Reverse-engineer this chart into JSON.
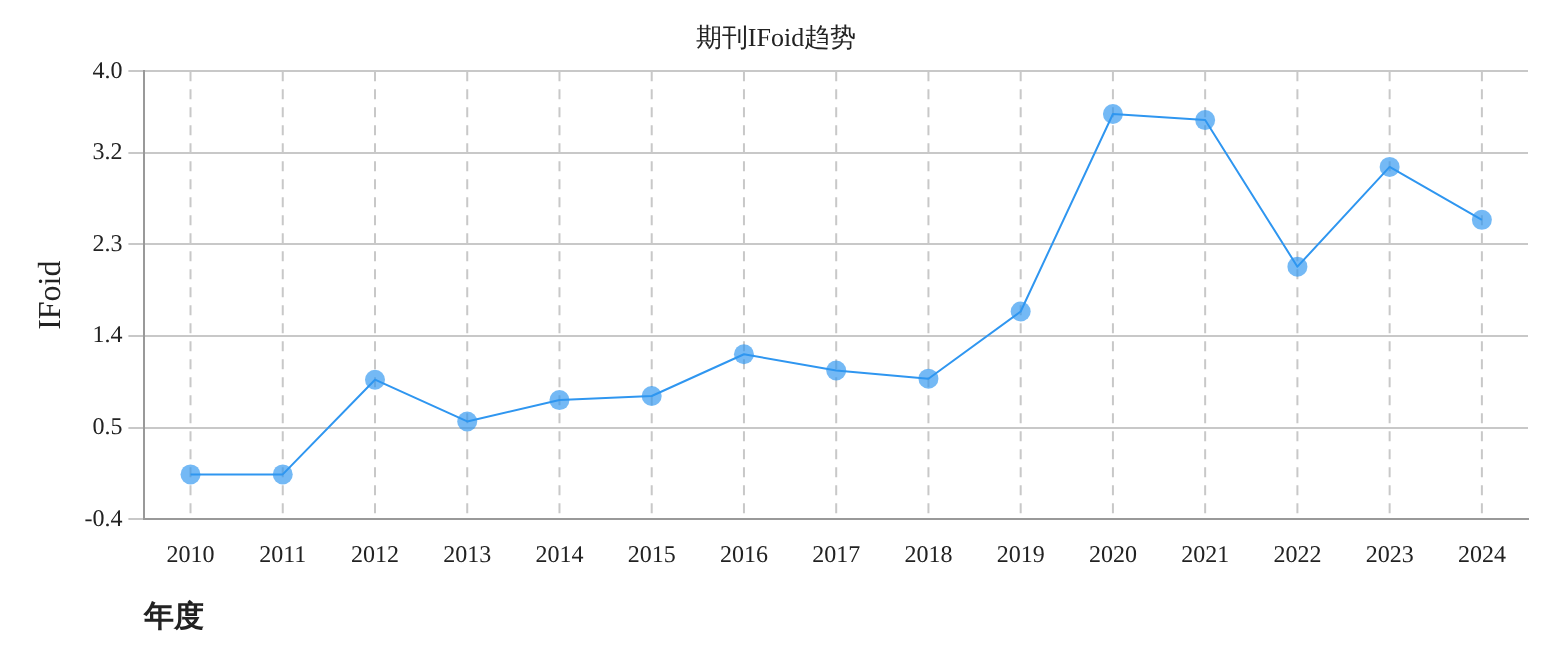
{
  "chart_data": {
    "type": "line",
    "title": "期刊IFoid趋势",
    "xlabel": "年度",
    "ylabel": "IFoid",
    "categories": [
      "2010",
      "2011",
      "2012",
      "2013",
      "2014",
      "2015",
      "2016",
      "2017",
      "2018",
      "2019",
      "2020",
      "2021",
      "2022",
      "2023",
      "2024"
    ],
    "series": [
      {
        "color": "#2f96f0",
        "values": [
          0.04,
          0.04,
          0.97,
          0.56,
          0.77,
          0.81,
          1.22,
          1.06,
          0.98,
          1.64,
          3.58,
          3.52,
          2.08,
          3.06,
          2.54
        ]
      }
    ],
    "ylim": [
      -0.4,
      4.0
    ],
    "yticks": [
      -0.4,
      0.5,
      1.4,
      2.3,
      3.2,
      {
        "value": 4,
        "label": "4.0"
      }
    ],
    "grid": true,
    "marker": "circle",
    "legend": false
  }
}
